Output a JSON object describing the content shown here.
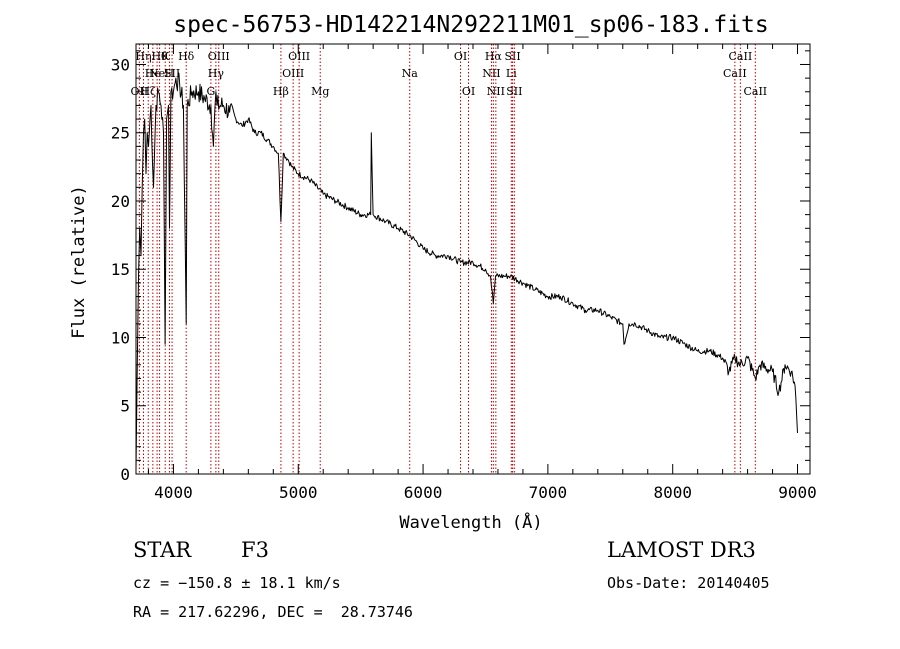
{
  "chart_data": {
    "type": "line",
    "title": "spec-56753-HD142214N292211M01_sp06-183.fits",
    "xlabel": "Wavelength (Å)",
    "ylabel": "Flux (relative)",
    "xlim": [
      3700,
      9100
    ],
    "ylim": [
      0,
      31.5
    ],
    "xticks": [
      4000,
      5000,
      6000,
      7000,
      8000,
      9000
    ],
    "yticks": [
      0,
      5,
      10,
      15,
      20,
      25,
      30
    ],
    "x_minor_step": 200,
    "y_minor_step": 1,
    "series": [
      {
        "name": "spectrum",
        "x": [
          3700,
          3710,
          3720,
          3730,
          3740,
          3750,
          3760,
          3770,
          3780,
          3790,
          3800,
          3820,
          3840,
          3860,
          3880,
          3900,
          3920,
          3933,
          3945,
          3960,
          3968,
          3980,
          4000,
          4020,
          4050,
          4080,
          4102,
          4110,
          4150,
          4200,
          4250,
          4300,
          4320,
          4340,
          4350,
          4400,
          4450,
          4500,
          4550,
          4600,
          4650,
          4700,
          4750,
          4800,
          4840,
          4861,
          4880,
          4920,
          4950,
          5000,
          5100,
          5200,
          5300,
          5400,
          5500,
          5580,
          5585,
          5600,
          5700,
          5800,
          5890,
          5950,
          6000,
          6100,
          6200,
          6300,
          6400,
          6500,
          6540,
          6563,
          6580,
          6650,
          6700,
          6800,
          6900,
          7000,
          7100,
          7200,
          7300,
          7400,
          7500,
          7600,
          7610,
          7650,
          7700,
          7800,
          7900,
          8000,
          8100,
          8200,
          8300,
          8400,
          8450,
          8500,
          8542,
          8600,
          8662,
          8700,
          8800,
          8850,
          8900,
          8950,
          8980,
          9000
        ],
        "y": [
          0.3,
          7.5,
          14.5,
          18,
          16,
          21,
          25,
          26,
          22,
          25,
          24,
          27,
          21,
          27,
          28,
          27,
          25,
          9.5,
          26,
          27,
          18,
          28,
          28,
          29,
          28.5,
          27,
          11,
          27,
          28,
          28,
          27.5,
          27,
          24,
          28,
          27,
          27,
          26.5,
          26,
          25.5,
          26,
          25,
          25,
          24.5,
          24,
          23.5,
          18.5,
          23.5,
          23,
          22.5,
          22,
          21.5,
          20.5,
          20,
          19.5,
          19,
          19,
          25,
          19,
          18.5,
          18,
          17.5,
          17,
          16.5,
          16,
          16,
          15.5,
          15.5,
          15,
          14.5,
          12.5,
          14.5,
          14.5,
          14.5,
          14,
          13.5,
          13,
          13,
          12.5,
          12,
          12,
          11.5,
          11,
          9.5,
          11,
          11,
          10.5,
          10,
          10,
          9.5,
          9,
          9,
          8.5,
          7.5,
          8.5,
          8,
          8.5,
          7,
          8,
          7.5,
          6,
          8,
          7.5,
          6.5,
          3
        ]
      }
    ],
    "line_markers": [
      {
        "wavelength": 3727,
        "row": 2,
        "label": "OII"
      },
      {
        "wavelength": 3760,
        "row": 0,
        "label": "Hη"
      },
      {
        "wavelength": 3798,
        "row": 2,
        "label": "Hζ"
      },
      {
        "wavelength": 3835,
        "row": 1,
        "label": "He"
      },
      {
        "wavelength": 3869,
        "row": 1,
        "label": "Ne"
      },
      {
        "wavelength": 3889,
        "row": 0,
        "label": "Hθ"
      },
      {
        "wavelength": 3934,
        "row": 0,
        "label": "K"
      },
      {
        "wavelength": 3968,
        "row": 1,
        "label": "H"
      },
      {
        "wavelength": 3989,
        "row": 1,
        "label": "SII"
      },
      {
        "wavelength": 4102,
        "row": 0,
        "label": "Hδ"
      },
      {
        "wavelength": 4300,
        "row": 2,
        "label": "G"
      },
      {
        "wavelength": 4340,
        "row": 1,
        "label": "Hγ"
      },
      {
        "wavelength": 4363,
        "row": 0,
        "label": "OIII"
      },
      {
        "wavelength": 4861,
        "row": 2,
        "label": "Hβ"
      },
      {
        "wavelength": 4959,
        "row": 1,
        "label": "OIII"
      },
      {
        "wavelength": 5007,
        "row": 0,
        "label": "OIII"
      },
      {
        "wavelength": 5176,
        "row": 2,
        "label": "Mg"
      },
      {
        "wavelength": 5893,
        "row": 1,
        "label": "Na"
      },
      {
        "wavelength": 6300,
        "row": 0,
        "label": "OI"
      },
      {
        "wavelength": 6364,
        "row": 2,
        "label": "OI"
      },
      {
        "wavelength": 6548,
        "row": 1,
        "label": "NII"
      },
      {
        "wavelength": 6563,
        "row": 0,
        "label": "Hα"
      },
      {
        "wavelength": 6583,
        "row": 2,
        "label": "NII"
      },
      {
        "wavelength": 6707,
        "row": 1,
        "label": "Li"
      },
      {
        "wavelength": 6717,
        "row": 0,
        "label": "SII"
      },
      {
        "wavelength": 6731,
        "row": 2,
        "label": "SII"
      },
      {
        "wavelength": 8498,
        "row": 1,
        "label": "CaII"
      },
      {
        "wavelength": 8542,
        "row": 0,
        "label": "CaII"
      },
      {
        "wavelength": 8662,
        "row": 2,
        "label": "CaII"
      }
    ],
    "colors": {
      "axes": "#000000",
      "spectrum": "#000000",
      "markers": "#c00000"
    }
  },
  "info": {
    "object_class": "STAR",
    "subclass": "F3",
    "survey": "LAMOST DR3",
    "velocity": "cz = −150.8 ± 18.1 km/s",
    "obs_date": "Obs-Date: 20140405",
    "coordinates": "RA = 217.62296, DEC =  28.73746"
  }
}
